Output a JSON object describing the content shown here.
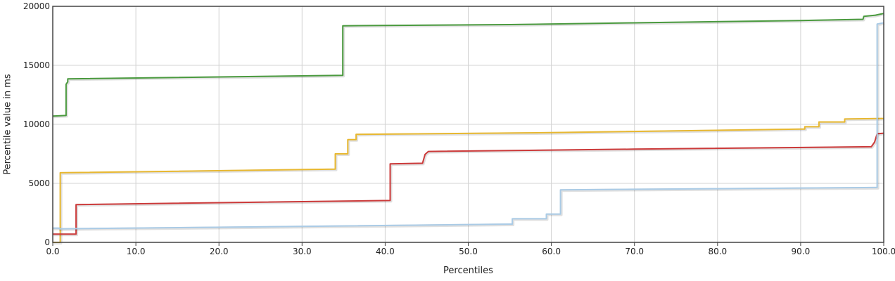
{
  "chart_data": {
    "type": "line",
    "step": true,
    "title": "",
    "xlabel": "Percentiles",
    "ylabel": "Percentile value in ms",
    "xlim": [
      0,
      100
    ],
    "ylim": [
      0,
      20000
    ],
    "xticks": [
      0,
      10,
      20,
      30,
      40,
      50,
      60,
      70,
      80,
      90,
      100
    ],
    "xtick_labels": [
      "0.0",
      "10.0",
      "20.0",
      "30.0",
      "40.0",
      "50.0",
      "60.0",
      "70.0",
      "80.0",
      "90.0",
      "100.0"
    ],
    "yticks": [
      0,
      5000,
      10000,
      15000,
      20000
    ],
    "ytick_labels": [
      "0",
      "5000",
      "10000",
      "15000",
      "20000"
    ],
    "grid": true,
    "legend": "none",
    "series": [
      {
        "color": "#4a9a3e",
        "points": [
          [
            0,
            10700
          ],
          [
            1.6,
            10750
          ],
          [
            1.6,
            13400
          ],
          [
            1.8,
            13600
          ],
          [
            1.8,
            13850
          ],
          [
            34.9,
            14150
          ],
          [
            34.9,
            18350
          ],
          [
            55,
            18450
          ],
          [
            70,
            18600
          ],
          [
            90,
            18800
          ],
          [
            97.5,
            18900
          ],
          [
            97.6,
            19150
          ],
          [
            99,
            19250
          ],
          [
            100,
            19400
          ]
        ]
      },
      {
        "color": "#e8b830",
        "points": [
          [
            0,
            0
          ],
          [
            0.9,
            0
          ],
          [
            0.9,
            5900
          ],
          [
            34,
            6200
          ],
          [
            34,
            7500
          ],
          [
            35.5,
            7500
          ],
          [
            35.5,
            8700
          ],
          [
            36.5,
            8700
          ],
          [
            36.5,
            9150
          ],
          [
            60,
            9300
          ],
          [
            90,
            9600
          ],
          [
            90.5,
            9600
          ],
          [
            90.5,
            9800
          ],
          [
            92.2,
            9800
          ],
          [
            92.2,
            10200
          ],
          [
            95.3,
            10200
          ],
          [
            95.3,
            10450
          ],
          [
            100,
            10500
          ]
        ]
      },
      {
        "color": "#cc3a3a",
        "points": [
          [
            0,
            700
          ],
          [
            2.8,
            700
          ],
          [
            2.8,
            3200
          ],
          [
            40.6,
            3550
          ],
          [
            40.6,
            6650
          ],
          [
            44.5,
            6700
          ],
          [
            44.8,
            7450
          ],
          [
            45.2,
            7700
          ],
          [
            70,
            7900
          ],
          [
            98.5,
            8100
          ],
          [
            98.9,
            8500
          ],
          [
            99.2,
            9200
          ],
          [
            100,
            9250
          ]
        ]
      },
      {
        "color": "#aacbe6",
        "points": [
          [
            0,
            1200
          ],
          [
            0.8,
            1200
          ],
          [
            0.8,
            1150
          ],
          [
            30,
            1350
          ],
          [
            55,
            1550
          ],
          [
            55.3,
            1550
          ],
          [
            55.3,
            2000
          ],
          [
            59.4,
            2000
          ],
          [
            59.4,
            2400
          ],
          [
            61.1,
            2400
          ],
          [
            61.1,
            4450
          ],
          [
            80,
            4550
          ],
          [
            99,
            4650
          ],
          [
            99.2,
            4650
          ],
          [
            99.2,
            18500
          ],
          [
            100,
            18600
          ]
        ]
      }
    ]
  }
}
